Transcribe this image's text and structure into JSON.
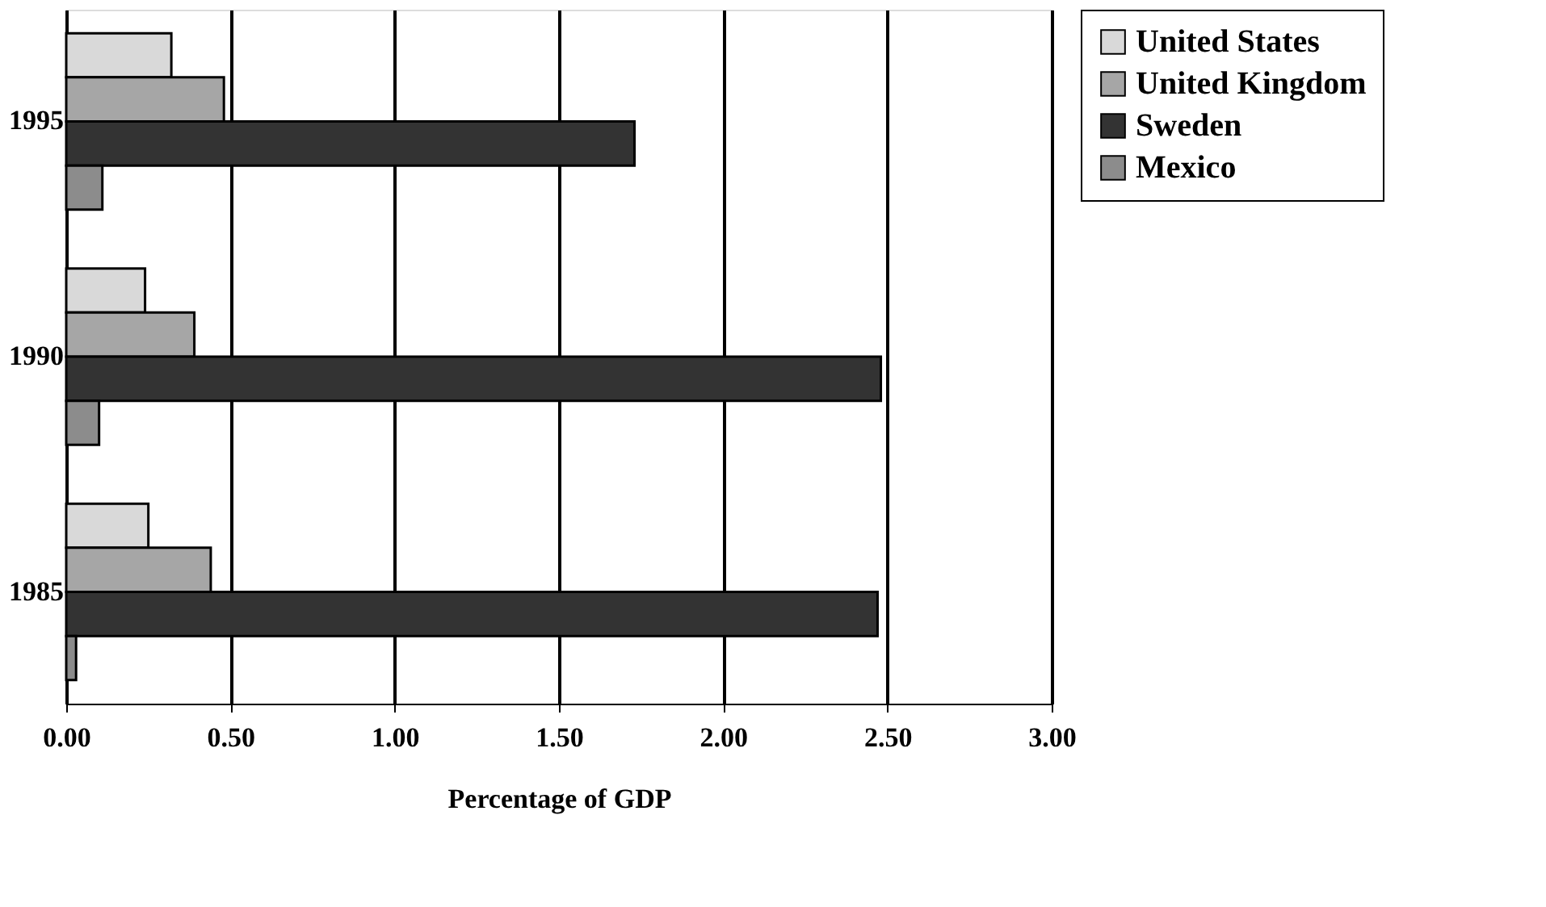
{
  "chart_data": {
    "type": "bar",
    "orientation": "horizontal",
    "xlabel": "Percentage of GDP",
    "categories": [
      "1995",
      "1990",
      "1985"
    ],
    "series": [
      {
        "name": "United States",
        "color": "#d9d9d9",
        "values": [
          0.32,
          0.24,
          0.25
        ]
      },
      {
        "name": "United Kingdom",
        "color": "#a6a6a6",
        "values": [
          0.48,
          0.39,
          0.44
        ]
      },
      {
        "name": "Sweden",
        "color": "#333333",
        "values": [
          1.73,
          2.48,
          2.47
        ]
      },
      {
        "name": "Mexico",
        "color": "#8c8c8c",
        "values": [
          0.11,
          0.1,
          0.03
        ]
      }
    ],
    "xlim": [
      0,
      3
    ],
    "xticks": [
      {
        "value": 0,
        "label": "0.00"
      },
      {
        "value": 0.5,
        "label": "0.50"
      },
      {
        "value": 1,
        "label": "1.00"
      },
      {
        "value": 1.5,
        "label": "1.50"
      },
      {
        "value": 2,
        "label": "2.00"
      },
      {
        "value": 2.5,
        "label": "2.50"
      },
      {
        "value": 3,
        "label": "3.00"
      }
    ],
    "grid": "x",
    "legend": "top right"
  }
}
